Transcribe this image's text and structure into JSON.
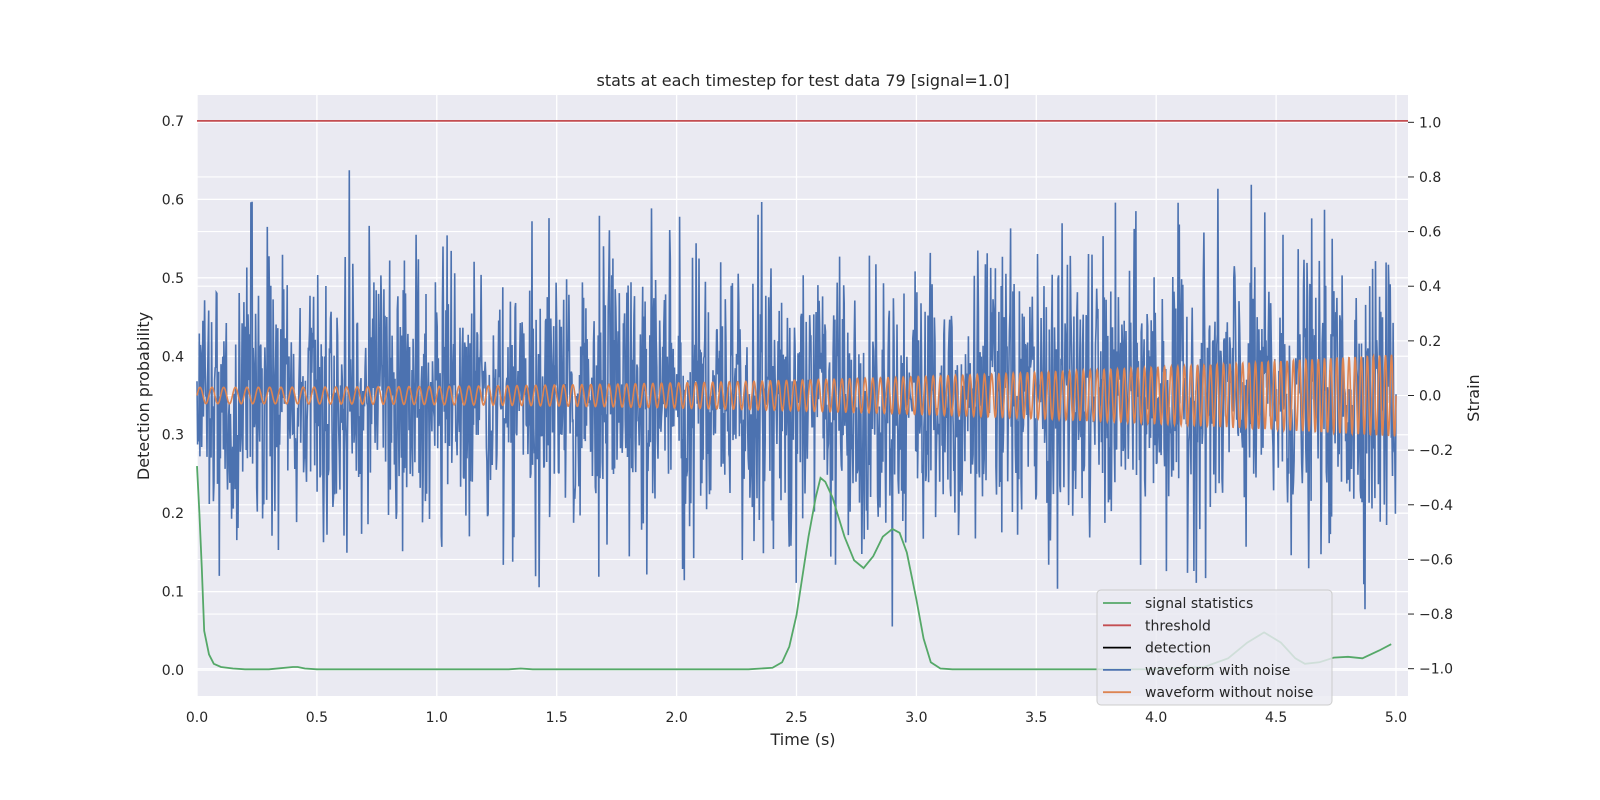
{
  "chart_data": {
    "type": "line",
    "title": "stats at each timestep for test data 79 [signal=1.0]",
    "xlabel": "Time (s)",
    "ylabel": "Detection probability",
    "y2label": "Strain",
    "xlim": [
      0.0,
      5.05
    ],
    "ylim": [
      -0.033,
      0.733
    ],
    "y2lim": [
      -1.1,
      1.1
    ],
    "xticks": [
      "0.0",
      "0.5",
      "1.0",
      "1.5",
      "2.0",
      "2.5",
      "3.0",
      "3.5",
      "4.0",
      "4.5",
      "5.0"
    ],
    "yticks": [
      "0.0",
      "0.1",
      "0.2",
      "0.3",
      "0.4",
      "0.5",
      "0.6",
      "0.7"
    ],
    "y2ticks": [
      "−1.0",
      "−0.8",
      "−0.6",
      "−0.4",
      "−0.2",
      "0.0",
      "0.2",
      "0.4",
      "0.6",
      "0.8",
      "1.0"
    ],
    "grid": true,
    "legend_position": "lower-right",
    "series": [
      {
        "name": "signal statistics",
        "axis": "left",
        "color": "#55a868",
        "x": [
          0.0,
          0.01,
          0.02,
          0.03,
          0.05,
          0.07,
          0.1,
          0.15,
          0.2,
          0.3,
          0.4,
          0.42,
          0.45,
          0.5,
          1.0,
          1.3,
          1.35,
          1.4,
          2.0,
          2.3,
          2.4,
          2.44,
          2.47,
          2.5,
          2.52,
          2.55,
          2.58,
          2.6,
          2.62,
          2.65,
          2.7,
          2.74,
          2.78,
          2.82,
          2.86,
          2.9,
          2.93,
          2.96,
          3.0,
          3.03,
          3.06,
          3.1,
          3.15,
          3.5,
          4.0,
          4.2,
          4.3,
          4.38,
          4.45,
          4.52,
          4.58,
          4.62,
          4.68,
          4.74,
          4.8,
          4.86,
          4.93,
          4.98
        ],
        "values": [
          0.26,
          0.2,
          0.13,
          0.05,
          0.02,
          0.008,
          0.004,
          0.002,
          0.001,
          0.001,
          0.004,
          0.004,
          0.002,
          0.001,
          0.001,
          0.001,
          0.002,
          0.001,
          0.001,
          0.001,
          0.003,
          0.01,
          0.03,
          0.07,
          0.11,
          0.17,
          0.22,
          0.245,
          0.24,
          0.22,
          0.17,
          0.14,
          0.13,
          0.145,
          0.17,
          0.18,
          0.175,
          0.15,
          0.09,
          0.04,
          0.01,
          0.002,
          0.001,
          0.001,
          0.001,
          0.004,
          0.015,
          0.035,
          0.048,
          0.035,
          0.015,
          0.008,
          0.01,
          0.016,
          0.017,
          0.015,
          0.025,
          0.033
        ]
      },
      {
        "name": "threshold",
        "axis": "left",
        "color": "#c44e52",
        "x": [
          0.0,
          5.05
        ],
        "values": [
          0.7,
          0.7
        ]
      },
      {
        "name": "detection",
        "axis": "left",
        "color": "#000000",
        "x": [],
        "values": []
      },
      {
        "name": "waveform with noise",
        "axis": "right",
        "color": "#4c72b0",
        "x_range": [
          0.0,
          5.0
        ],
        "n_points": 2048,
        "std": 0.26,
        "min": -1.0,
        "max": 1.0
      },
      {
        "name": "waveform without noise",
        "axis": "right",
        "color": "#dd8452",
        "x_range": [
          0.0,
          5.0
        ],
        "amp_start": 0.03,
        "amp_end": 0.15,
        "freq_start": 20,
        "freq_end": 40
      }
    ]
  }
}
